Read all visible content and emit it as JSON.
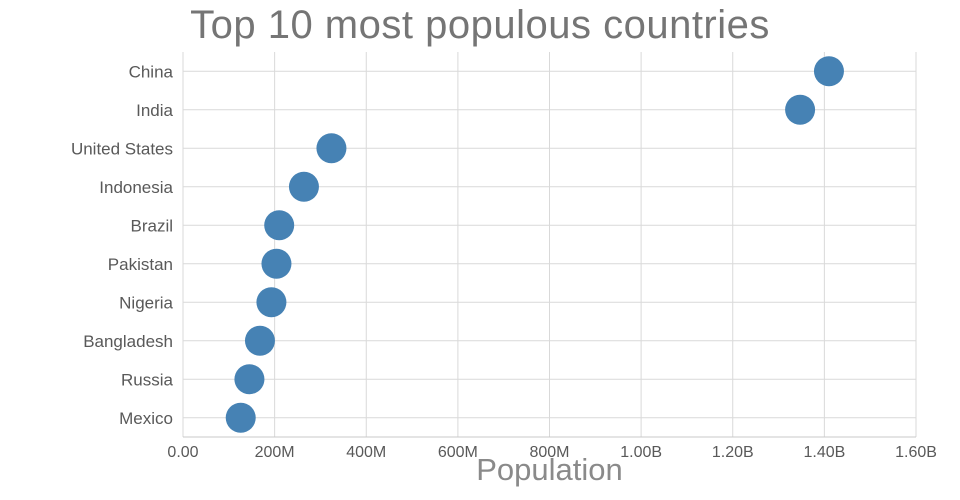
{
  "chart": {
    "title": "Top 10 most populous countries",
    "xlabel": "Population"
  },
  "chart_data": {
    "type": "scatter",
    "subtype": "horizontal-dot-plot",
    "title": "Top 10 most populous countries",
    "xlabel": "Population",
    "ylabel": "",
    "categories": [
      "China",
      "India",
      "United States",
      "Indonesia",
      "Brazil",
      "Pakistan",
      "Nigeria",
      "Bangladesh",
      "Russia",
      "Mexico"
    ],
    "values": [
      1410000000,
      1347000000,
      324000000,
      264000000,
      210000000,
      204000000,
      193000000,
      168000000,
      145000000,
      126000000
    ],
    "xlim": [
      0,
      1600000000
    ],
    "xticks": [
      0,
      200000000,
      400000000,
      600000000,
      800000000,
      1000000000,
      1200000000,
      1400000000,
      1600000000
    ],
    "xtick_labels": [
      "0.00",
      "200M",
      "400M",
      "600M",
      "800M",
      "1.00B",
      "1.20B",
      "1.40B",
      "1.60B"
    ],
    "grid": true,
    "legend": false,
    "dot_color": "#4682b4",
    "grid_color": "#d9d9d9",
    "axis_line_color": "#c8c8c8",
    "dot_radius": 15
  }
}
